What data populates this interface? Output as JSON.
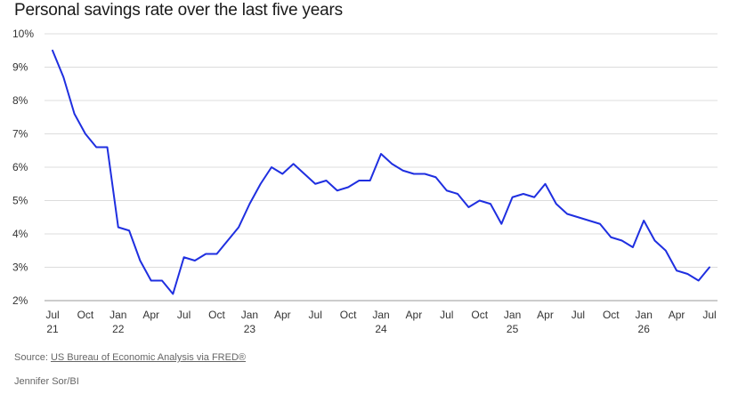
{
  "chart_data": {
    "type": "line",
    "title": "Personal savings rate over the last five years",
    "xlabel": "",
    "ylabel": "",
    "ylim": [
      2,
      10
    ],
    "yticks": [
      10,
      9,
      8,
      7,
      6,
      5,
      4,
      3,
      2
    ],
    "ytick_labels": [
      "10%",
      "9%",
      "8%",
      "7%",
      "6%",
      "5%",
      "4%",
      "3%",
      "2%"
    ],
    "xticks": [
      {
        "month": 0,
        "label": "Jul",
        "year": "21"
      },
      {
        "month": 3,
        "label": "Oct",
        "year": ""
      },
      {
        "month": 6,
        "label": "Jan",
        "year": "22"
      },
      {
        "month": 9,
        "label": "Apr",
        "year": ""
      },
      {
        "month": 12,
        "label": "Jul",
        "year": ""
      },
      {
        "month": 15,
        "label": "Oct",
        "year": ""
      },
      {
        "month": 18,
        "label": "Jan",
        "year": "23"
      },
      {
        "month": 21,
        "label": "Apr",
        "year": ""
      },
      {
        "month": 24,
        "label": "Jul",
        "year": ""
      },
      {
        "month": 27,
        "label": "Oct",
        "year": ""
      },
      {
        "month": 30,
        "label": "Jan",
        "year": "24"
      },
      {
        "month": 33,
        "label": "Apr",
        "year": ""
      },
      {
        "month": 36,
        "label": "Jul",
        "year": ""
      },
      {
        "month": 39,
        "label": "Oct",
        "year": ""
      },
      {
        "month": 42,
        "label": "Jan",
        "year": "25"
      },
      {
        "month": 45,
        "label": "Apr",
        "year": ""
      },
      {
        "month": 48,
        "label": "Jul",
        "year": ""
      },
      {
        "month": 51,
        "label": "Oct",
        "year": ""
      },
      {
        "month": 54,
        "label": "Jan",
        "year": "26"
      },
      {
        "month": 57,
        "label": "Apr",
        "year": ""
      },
      {
        "month": 60,
        "label": "Jul",
        "year": ""
      }
    ],
    "x_start": "Jul 2021",
    "x_end": "Jul 2026",
    "grid": true,
    "series": [
      {
        "name": "",
        "color": "#1f2fe0",
        "values": [
          9.5,
          8.7,
          7.6,
          7.0,
          6.6,
          6.6,
          4.2,
          4.1,
          3.2,
          2.6,
          2.6,
          2.2,
          3.3,
          3.2,
          3.4,
          3.4,
          3.8,
          4.2,
          4.9,
          5.5,
          6.0,
          5.8,
          6.1,
          5.8,
          5.5,
          5.6,
          5.3,
          5.4,
          5.6,
          5.6,
          6.4,
          6.1,
          5.9,
          5.8,
          5.8,
          5.7,
          5.3,
          5.2,
          4.8,
          5.0,
          4.9,
          4.3,
          5.1,
          5.2,
          5.1,
          5.5,
          4.9,
          4.6,
          4.5,
          4.4,
          4.3,
          3.9,
          3.8,
          3.6,
          4.4,
          3.8,
          3.5,
          2.9,
          2.8,
          2.6,
          3.0
        ]
      }
    ]
  },
  "footer": {
    "source_prefix": "Source: ",
    "source_link": "US Bureau of Economic Analysis via FRED®",
    "credit": "Jennifer Sor/BI"
  }
}
